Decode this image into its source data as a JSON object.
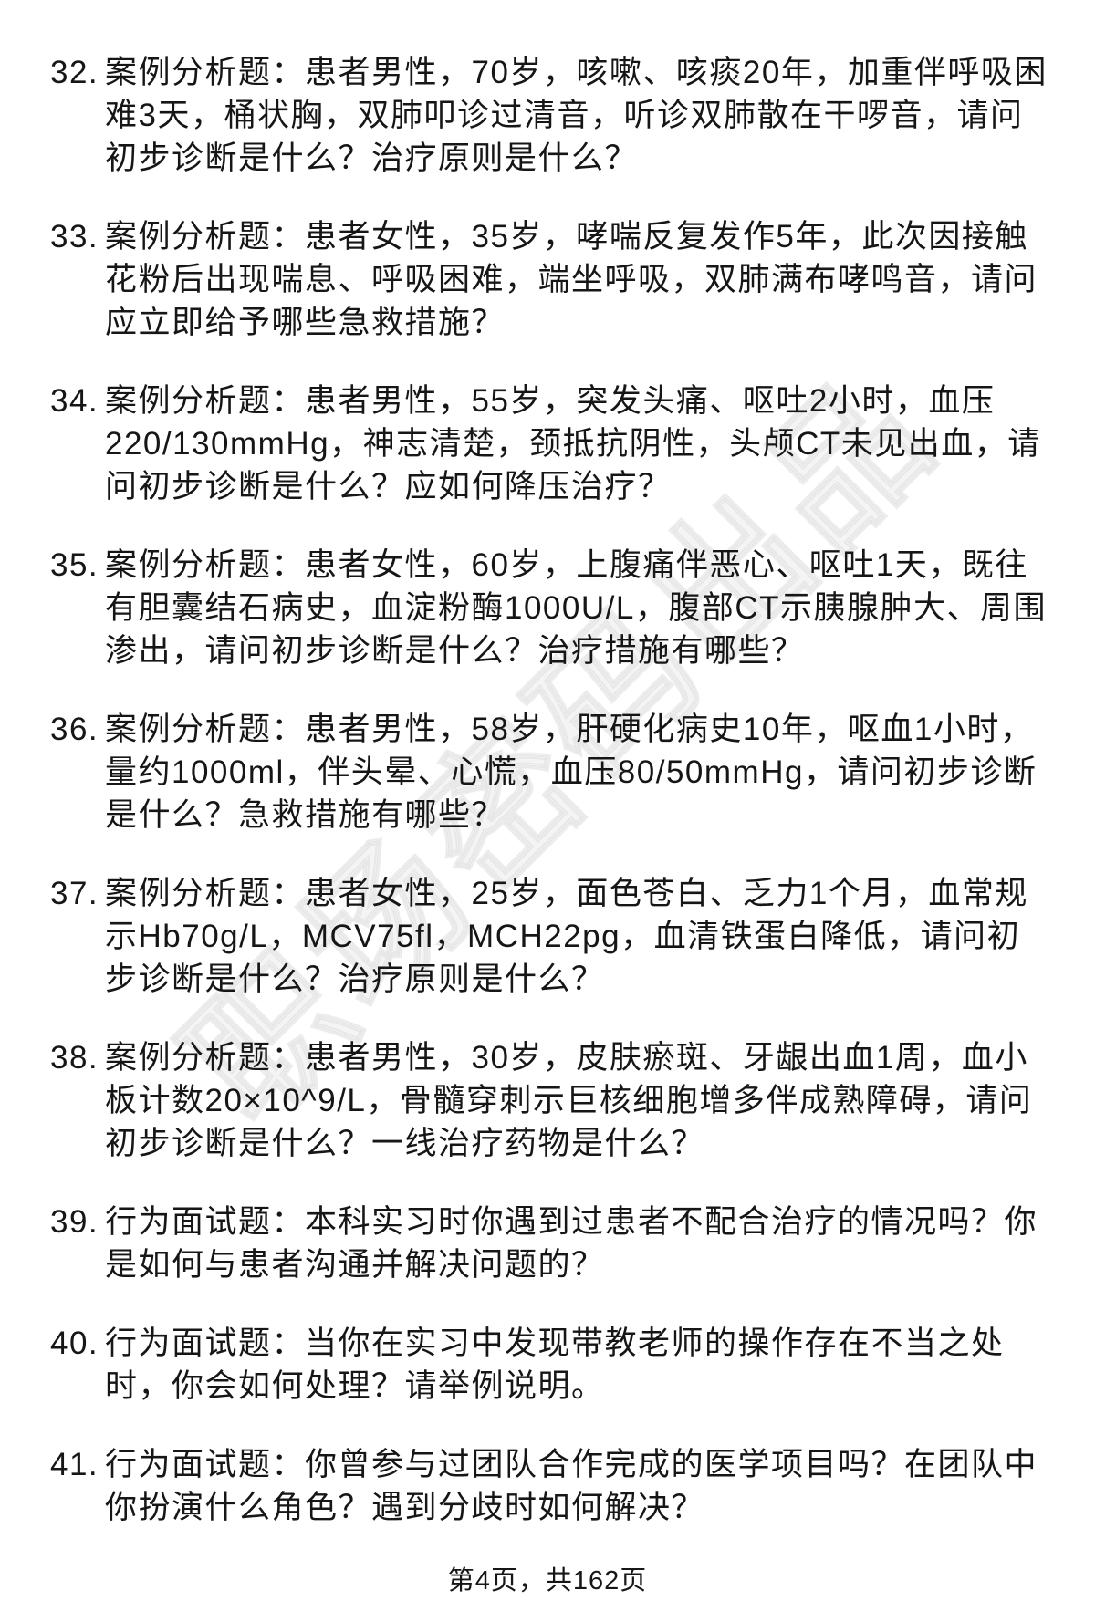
{
  "document": {
    "watermark": "职场密码出品",
    "footer": {
      "page_label": "第4页，共162页"
    },
    "questions": [
      {
        "number": "32.",
        "text": "案例分析题：患者男性，70岁，咳嗽、咳痰20年，加重伴呼吸困难3天，桶状胸，双肺叩诊过清音，听诊双肺散在干啰音，请问初步诊断是什么？治疗原则是什么？"
      },
      {
        "number": "33.",
        "text": "案例分析题：患者女性，35岁，哮喘反复发作5年，此次因接触花粉后出现喘息、呼吸困难，端坐呼吸，双肺满布哮鸣音，请问应立即给予哪些急救措施？"
      },
      {
        "number": "34.",
        "text": "案例分析题：患者男性，55岁，突发头痛、呕吐2小时，血压220/130mmHg，神志清楚，颈抵抗阴性，头颅CT未见出血，请问初步诊断是什么？应如何降压治疗？"
      },
      {
        "number": "35.",
        "text": "案例分析题：患者女性，60岁，上腹痛伴恶心、呕吐1天，既往有胆囊结石病史，血淀粉酶1000U/L，腹部CT示胰腺肿大、周围渗出，请问初步诊断是什么？治疗措施有哪些？"
      },
      {
        "number": "36.",
        "text": "案例分析题：患者男性，58岁，肝硬化病史10年，呕血1小时，量约1000ml，伴头晕、心慌，血压80/50mmHg，请问初步诊断是什么？急救措施有哪些？"
      },
      {
        "number": "37.",
        "text": "案例分析题：患者女性，25岁，面色苍白、乏力1个月，血常规示Hb70g/L，MCV75fl，MCH22pg，血清铁蛋白降低，请问初步诊断是什么？治疗原则是什么？"
      },
      {
        "number": "38.",
        "text": "案例分析题：患者男性，30岁，皮肤瘀斑、牙龈出血1周，血小板计数20×10^9/L，骨髓穿刺示巨核细胞增多伴成熟障碍，请问初步诊断是什么？一线治疗药物是什么？"
      },
      {
        "number": "39.",
        "text": "行为面试题：本科实习时你遇到过患者不配合治疗的情况吗？你是如何与患者沟通并解决问题的？"
      },
      {
        "number": "40.",
        "text": "行为面试题：当你在实习中发现带教老师的操作存在不当之处时，你会如何处理？请举例说明。"
      },
      {
        "number": "41.",
        "text": "行为面试题：你曾参与过团队合作完成的医学项目吗？在团队中你扮演什么角色？遇到分歧时如何解决？"
      }
    ]
  }
}
